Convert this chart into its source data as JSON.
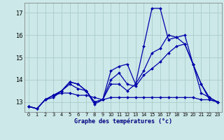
{
  "xlabel": "Graphe des températures (°c)",
  "background_color": "#cce8e8",
  "grid_color": "#aacccc",
  "line_color": "#0000aa",
  "ylim": [
    12.55,
    17.45
  ],
  "xlim": [
    -0.5,
    23.5
  ],
  "yticks": [
    13,
    14,
    15,
    16,
    17
  ],
  "xticks": [
    0,
    1,
    2,
    3,
    4,
    5,
    6,
    7,
    8,
    9,
    10,
    11,
    12,
    13,
    14,
    15,
    16,
    17,
    18,
    19,
    20,
    21,
    22,
    23
  ],
  "series": [
    [
      12.8,
      12.7,
      13.1,
      13.2,
      13.5,
      13.8,
      13.6,
      13.5,
      12.9,
      13.1,
      13.8,
      13.8,
      13.5,
      13.8,
      15.5,
      17.2,
      17.2,
      15.8,
      15.9,
      16.0,
      14.7,
      13.8,
      13.1,
      13.0
    ],
    [
      12.8,
      12.7,
      13.1,
      13.3,
      13.5,
      13.9,
      13.8,
      13.5,
      13.0,
      13.1,
      14.4,
      14.6,
      14.7,
      13.8,
      14.4,
      15.2,
      15.4,
      16.0,
      15.9,
      15.6,
      14.7,
      13.4,
      13.2,
      13.0
    ],
    [
      12.8,
      12.7,
      13.1,
      13.3,
      13.5,
      13.9,
      13.8,
      13.5,
      13.0,
      13.1,
      14.0,
      14.3,
      13.8,
      13.7,
      14.2,
      14.5,
      14.8,
      15.2,
      15.5,
      15.6,
      14.7,
      13.8,
      13.2,
      13.0
    ],
    [
      12.8,
      12.7,
      13.1,
      13.3,
      13.4,
      13.4,
      13.3,
      13.3,
      13.2,
      13.1,
      13.2,
      13.2,
      13.2,
      13.2,
      13.2,
      13.2,
      13.2,
      13.2,
      13.2,
      13.2,
      13.2,
      13.1,
      13.1,
      13.0
    ]
  ]
}
